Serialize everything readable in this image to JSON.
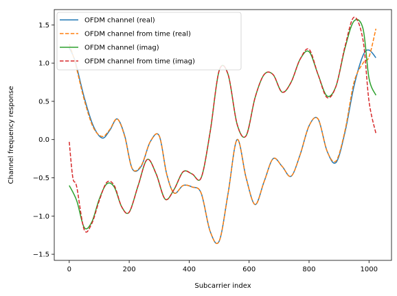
{
  "chart_data": {
    "type": "line",
    "title": "",
    "xlabel": "Subcarrier index",
    "ylabel": "Channel frequency response",
    "xlim": [
      -50,
      1075
    ],
    "ylim": [
      -1.58,
      1.7
    ],
    "xticks": [
      0,
      200,
      400,
      600,
      800,
      1000
    ],
    "yticks": [
      -1.5,
      -1.0,
      -0.5,
      0.0,
      0.5,
      1.0,
      1.5
    ],
    "xtick_labels": [
      "0",
      "200",
      "400",
      "600",
      "800",
      "1000"
    ],
    "ytick_labels": [
      "−1.5",
      "−1.0",
      "−0.5",
      "0.0",
      "0.5",
      "1.0",
      "1.5"
    ],
    "grid": false,
    "legend_position": "upper-left",
    "series": [
      {
        "name": "OFDM channel (real)",
        "color": "#1f77b4",
        "style": "solid",
        "x": [
          0,
          20,
          50,
          80,
          110,
          135,
          160,
          185,
          210,
          240,
          270,
          300,
          325,
          350,
          380,
          410,
          440,
          470,
          500,
          530,
          560,
          590,
          620,
          650,
          680,
          710,
          740,
          770,
          800,
          830,
          860,
          890,
          920,
          950,
          980,
          1000,
          1023
        ],
        "values": [
          1.2,
          1.02,
          0.55,
          0.18,
          0.02,
          0.12,
          0.27,
          0.05,
          -0.38,
          -0.35,
          -0.03,
          0.05,
          -0.45,
          -0.7,
          -0.6,
          -0.62,
          -0.7,
          -1.2,
          -1.33,
          -0.7,
          0.0,
          -0.5,
          -0.85,
          -0.55,
          -0.25,
          -0.35,
          -0.48,
          -0.2,
          0.18,
          0.27,
          -0.15,
          -0.3,
          0.1,
          0.7,
          1.1,
          1.17,
          1.07
        ]
      },
      {
        "name": "OFDM channel from time (real)",
        "color": "#ff7f0e",
        "style": "dashed",
        "x": [
          0,
          20,
          50,
          80,
          110,
          135,
          160,
          185,
          210,
          240,
          270,
          300,
          325,
          350,
          380,
          410,
          440,
          470,
          500,
          530,
          560,
          590,
          620,
          650,
          680,
          710,
          740,
          770,
          800,
          830,
          860,
          890,
          920,
          950,
          980,
          1000,
          1023
        ],
        "values": [
          1.25,
          1.0,
          0.52,
          0.16,
          0.04,
          0.13,
          0.27,
          0.04,
          -0.38,
          -0.34,
          -0.03,
          0.05,
          -0.45,
          -0.7,
          -0.6,
          -0.62,
          -0.7,
          -1.2,
          -1.33,
          -0.7,
          0.0,
          -0.5,
          -0.85,
          -0.55,
          -0.25,
          -0.35,
          -0.48,
          -0.2,
          0.18,
          0.27,
          -0.15,
          -0.28,
          0.12,
          0.75,
          1.0,
          1.08,
          1.45
        ]
      },
      {
        "name": "OFDM channel (imag)",
        "color": "#2ca02c",
        "style": "solid",
        "x": [
          0,
          25,
          50,
          75,
          100,
          125,
          150,
          175,
          200,
          230,
          260,
          290,
          320,
          350,
          380,
          410,
          440,
          470,
          500,
          530,
          560,
          590,
          620,
          650,
          680,
          710,
          740,
          770,
          800,
          830,
          860,
          890,
          920,
          950,
          980,
          1000,
          1023
        ],
        "values": [
          -0.6,
          -0.8,
          -1.15,
          -1.08,
          -0.78,
          -0.58,
          -0.62,
          -0.88,
          -0.95,
          -0.6,
          -0.26,
          -0.45,
          -0.78,
          -0.65,
          -0.42,
          -0.45,
          -0.5,
          0.1,
          0.9,
          0.85,
          0.2,
          0.05,
          0.55,
          0.85,
          0.85,
          0.62,
          0.75,
          1.05,
          1.15,
          0.85,
          0.57,
          0.7,
          1.2,
          1.55,
          1.45,
          0.8,
          0.58
        ]
      },
      {
        "name": "OFDM channel from time (imag)",
        "color": "#d62728",
        "style": "dashed",
        "x": [
          0,
          12,
          25,
          50,
          75,
          100,
          125,
          150,
          175,
          200,
          230,
          260,
          290,
          320,
          350,
          380,
          410,
          440,
          470,
          500,
          530,
          560,
          590,
          620,
          650,
          680,
          710,
          740,
          770,
          800,
          830,
          860,
          890,
          920,
          950,
          980,
          1000,
          1023
        ],
        "values": [
          -0.03,
          -0.5,
          -0.62,
          -1.18,
          -1.1,
          -0.8,
          -0.56,
          -0.6,
          -0.88,
          -0.95,
          -0.6,
          -0.26,
          -0.45,
          -0.78,
          -0.65,
          -0.42,
          -0.45,
          -0.5,
          0.1,
          0.9,
          0.85,
          0.2,
          0.05,
          0.55,
          0.85,
          0.85,
          0.62,
          0.75,
          1.05,
          1.18,
          0.85,
          0.55,
          0.7,
          1.22,
          1.6,
          1.3,
          0.5,
          0.08
        ]
      }
    ]
  }
}
